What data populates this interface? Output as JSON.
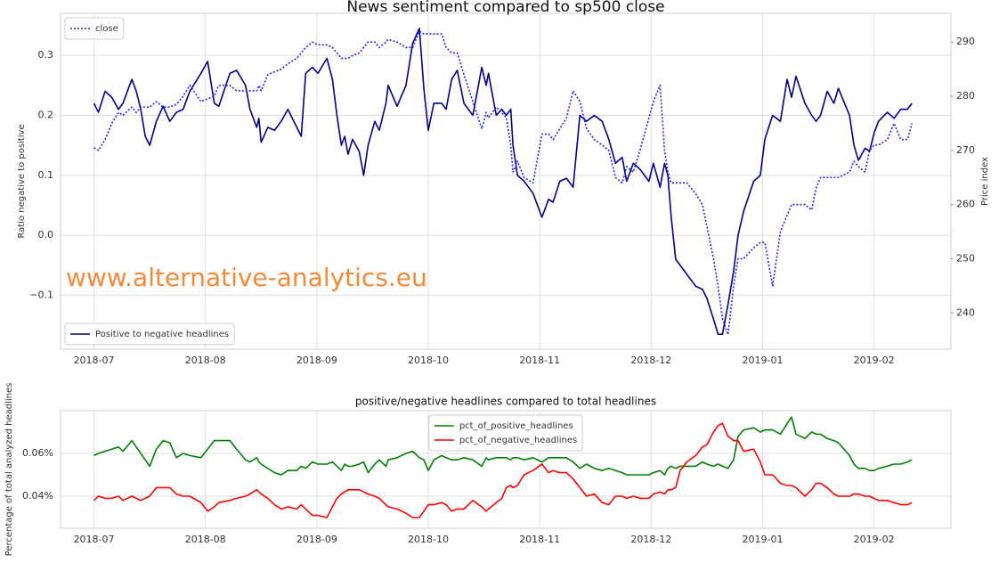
{
  "chart_data": [
    {
      "type": "line",
      "title": "News sentiment compared to sp500 close",
      "ylabel": "Ratio negative to positive",
      "y2label": "Price index",
      "annotation": "www.alternative-analytics.eu",
      "x": [
        0.0,
        0.04,
        0.1,
        0.16,
        0.22,
        0.26,
        0.34,
        0.38,
        0.42,
        0.46,
        0.5,
        0.56,
        0.62,
        0.68,
        0.74,
        0.8,
        0.86,
        0.96,
        1.02,
        1.08,
        1.12,
        1.22,
        1.28,
        1.36,
        1.4,
        1.46,
        1.48,
        1.5,
        1.56,
        1.62,
        1.68,
        1.74,
        1.82,
        1.86,
        1.9,
        1.96,
        2.01,
        2.09,
        2.14,
        2.18,
        2.22,
        2.25,
        2.28,
        2.32,
        2.38,
        2.42,
        2.46,
        2.52,
        2.56,
        2.62,
        2.64,
        2.72,
        2.8,
        2.86,
        2.92,
        2.96,
        3.0,
        3.05,
        3.12,
        3.16,
        3.21,
        3.26,
        3.32,
        3.4,
        3.48,
        3.52,
        3.54,
        3.61,
        3.66,
        3.7,
        3.74,
        3.76,
        3.8,
        3.86,
        3.94,
        4.02,
        4.08,
        4.12,
        4.18,
        4.24,
        4.3,
        4.36,
        4.42,
        4.49,
        4.56,
        4.62,
        4.68,
        4.74,
        4.78,
        4.84,
        4.9,
        4.98,
        5.02,
        5.08,
        5.12,
        5.15,
        5.18,
        5.22,
        5.26,
        5.32,
        5.4,
        5.46,
        5.5,
        5.56,
        5.6,
        5.64,
        5.69,
        5.74,
        5.78,
        5.83,
        5.92,
        5.98,
        6.02,
        6.09,
        6.16,
        6.22,
        6.26,
        6.3,
        6.38,
        6.44,
        6.48,
        6.52,
        6.58,
        6.64,
        6.68,
        6.78,
        6.82,
        6.86,
        6.92,
        6.96,
        7.0,
        7.04,
        7.12,
        7.18,
        7.24,
        7.3,
        7.34
      ],
      "series": [
        {
          "name": "Positive to negative headlines",
          "color": "#00008b",
          "linestyle": "solid",
          "legend": "lower left",
          "values": [
            0.22,
            0.205,
            0.24,
            0.23,
            0.21,
            0.22,
            0.26,
            0.24,
            0.21,
            0.165,
            0.15,
            0.19,
            0.215,
            0.19,
            0.205,
            0.21,
            0.24,
            0.27,
            0.29,
            0.22,
            0.215,
            0.27,
            0.275,
            0.25,
            0.21,
            0.18,
            0.195,
            0.155,
            0.18,
            0.175,
            0.19,
            0.21,
            0.18,
            0.165,
            0.27,
            0.28,
            0.27,
            0.295,
            0.26,
            0.2,
            0.15,
            0.165,
            0.135,
            0.16,
            0.14,
            0.1,
            0.15,
            0.19,
            0.175,
            0.22,
            0.25,
            0.215,
            0.25,
            0.32,
            0.345,
            0.245,
            0.175,
            0.22,
            0.22,
            0.21,
            0.26,
            0.275,
            0.22,
            0.2,
            0.28,
            0.25,
            0.27,
            0.2,
            0.21,
            0.2,
            0.21,
            0.15,
            0.1,
            0.09,
            0.07,
            0.03,
            0.06,
            0.055,
            0.09,
            0.095,
            0.08,
            0.2,
            0.19,
            0.2,
            0.19,
            0.16,
            0.12,
            0.13,
            0.09,
            0.12,
            0.11,
            0.09,
            0.12,
            0.08,
            0.12,
            0.1,
            0.03,
            -0.04,
            -0.05,
            -0.065,
            -0.085,
            -0.09,
            -0.105,
            -0.14,
            -0.165,
            -0.165,
            -0.115,
            -0.06,
            0.0,
            0.04,
            0.09,
            0.1,
            0.16,
            0.2,
            0.19,
            0.26,
            0.23,
            0.265,
            0.22,
            0.2,
            0.19,
            0.2,
            0.24,
            0.22,
            0.245,
            0.2,
            0.15,
            0.125,
            0.145,
            0.14,
            0.17,
            0.19,
            0.205,
            0.195,
            0.21,
            0.21,
            0.22
          ]
        },
        {
          "name": "close",
          "color": "#1f1fff",
          "linestyle": "dotted",
          "axis": "y2",
          "legend": "upper left",
          "values": [
            270.5,
            270,
            272,
            275,
            277,
            276.5,
            278,
            277,
            278,
            278,
            278,
            279,
            278,
            278,
            278.5,
            280,
            282,
            279,
            279.5,
            280,
            282,
            282,
            281,
            281,
            281,
            281,
            282,
            281,
            284,
            284.5,
            285,
            286,
            287,
            288,
            289,
            290,
            289.5,
            289.5,
            289,
            288,
            287,
            287,
            287,
            287.5,
            288,
            289,
            290,
            290,
            289,
            290,
            290.5,
            290,
            289,
            289,
            292,
            291.5,
            291.5,
            291.5,
            291.5,
            289,
            288,
            288,
            284,
            279,
            274,
            277,
            276,
            278,
            277,
            276,
            271,
            266,
            268,
            265,
            264,
            273,
            273,
            272,
            274,
            276,
            281,
            279,
            274,
            272,
            271,
            270,
            265,
            264,
            267,
            266,
            270,
            276,
            279,
            282,
            270,
            266,
            264,
            264,
            264,
            264,
            262,
            260,
            256,
            250,
            245,
            239,
            236,
            245,
            250,
            250,
            252,
            253,
            253,
            245,
            255,
            258,
            260,
            260,
            260,
            259,
            263,
            265,
            265,
            265,
            265,
            266,
            268,
            267,
            266,
            270,
            271,
            271,
            272,
            275,
            272,
            272,
            275
          ]
        }
      ],
      "xlim": [
        -0.3,
        7.69
      ],
      "xticks": [
        {
          "value": 0,
          "label": "2018-07"
        },
        {
          "value": 1,
          "label": "2018-08"
        },
        {
          "value": 2,
          "label": "2018-09"
        },
        {
          "value": 3,
          "label": "2018-10"
        },
        {
          "value": 4,
          "label": "2018-11"
        },
        {
          "value": 5,
          "label": "2018-12"
        },
        {
          "value": 6,
          "label": "2019-01"
        },
        {
          "value": 7,
          "label": "2019-02"
        }
      ],
      "ylim": [
        -0.19,
        0.37
      ],
      "yticks": [
        {
          "value": -0.1,
          "label": "−0.1"
        },
        {
          "value": 0,
          "label": "0.0"
        },
        0.1,
        0.2,
        0.3
      ],
      "y2lim": [
        233.3,
        295.3
      ],
      "y2ticks": [
        240,
        250,
        260,
        270,
        280,
        290
      ],
      "grid": true
    },
    {
      "type": "line",
      "title": "positive/negative headlines compared to total headlines",
      "ylabel": "Percentage of total analyzed headlines",
      "legend": "upper center",
      "x": [
        0.0,
        0.04,
        0.1,
        0.16,
        0.22,
        0.26,
        0.34,
        0.38,
        0.42,
        0.46,
        0.5,
        0.56,
        0.62,
        0.68,
        0.74,
        0.8,
        0.86,
        0.96,
        1.02,
        1.08,
        1.12,
        1.22,
        1.28,
        1.36,
        1.4,
        1.46,
        1.48,
        1.5,
        1.56,
        1.62,
        1.68,
        1.74,
        1.82,
        1.86,
        1.9,
        1.96,
        2.01,
        2.09,
        2.14,
        2.18,
        2.22,
        2.25,
        2.28,
        2.32,
        2.38,
        2.42,
        2.46,
        2.52,
        2.56,
        2.62,
        2.64,
        2.72,
        2.8,
        2.86,
        2.92,
        2.96,
        3.0,
        3.05,
        3.12,
        3.16,
        3.21,
        3.26,
        3.32,
        3.4,
        3.48,
        3.52,
        3.54,
        3.61,
        3.66,
        3.7,
        3.74,
        3.76,
        3.8,
        3.86,
        3.94,
        4.02,
        4.08,
        4.12,
        4.18,
        4.24,
        4.3,
        4.36,
        4.42,
        4.49,
        4.56,
        4.62,
        4.68,
        4.74,
        4.78,
        4.84,
        4.9,
        4.98,
        5.02,
        5.08,
        5.12,
        5.15,
        5.18,
        5.22,
        5.26,
        5.32,
        5.4,
        5.46,
        5.5,
        5.56,
        5.6,
        5.64,
        5.69,
        5.74,
        5.78,
        5.83,
        5.92,
        5.98,
        6.02,
        6.09,
        6.16,
        6.22,
        6.26,
        6.3,
        6.38,
        6.44,
        6.48,
        6.52,
        6.58,
        6.64,
        6.68,
        6.78,
        6.82,
        6.86,
        6.92,
        6.96,
        7.0,
        7.04,
        7.12,
        7.18,
        7.24,
        7.3,
        7.34
      ],
      "series": [
        {
          "name": "pct_of_positive_headlines",
          "color": "#008000",
          "values": [
            0.059,
            0.06,
            0.061,
            0.062,
            0.063,
            0.061,
            0.066,
            0.063,
            0.06,
            0.057,
            0.054,
            0.062,
            0.066,
            0.065,
            0.058,
            0.06,
            0.059,
            0.058,
            0.062,
            0.066,
            0.066,
            0.066,
            0.062,
            0.057,
            0.056,
            0.058,
            0.056,
            0.055,
            0.053,
            0.051,
            0.05,
            0.052,
            0.052,
            0.054,
            0.053,
            0.056,
            0.055,
            0.055,
            0.056,
            0.054,
            0.052,
            0.055,
            0.054,
            0.054,
            0.055,
            0.056,
            0.051,
            0.055,
            0.057,
            0.054,
            0.057,
            0.058,
            0.06,
            0.061,
            0.058,
            0.057,
            0.052,
            0.057,
            0.059,
            0.058,
            0.057,
            0.057,
            0.058,
            0.057,
            0.054,
            0.058,
            0.057,
            0.058,
            0.058,
            0.058,
            0.057,
            0.058,
            0.058,
            0.057,
            0.058,
            0.056,
            0.058,
            0.058,
            0.058,
            0.058,
            0.056,
            0.053,
            0.055,
            0.053,
            0.052,
            0.053,
            0.052,
            0.051,
            0.05,
            0.05,
            0.05,
            0.05,
            0.051,
            0.052,
            0.05,
            0.053,
            0.054,
            0.053,
            0.054,
            0.054,
            0.054,
            0.056,
            0.055,
            0.054,
            0.055,
            0.054,
            0.053,
            0.057,
            0.068,
            0.071,
            0.072,
            0.07,
            0.071,
            0.071,
            0.069,
            0.074,
            0.077,
            0.069,
            0.067,
            0.07,
            0.069,
            0.069,
            0.067,
            0.066,
            0.065,
            0.059,
            0.055,
            0.053,
            0.053,
            0.052,
            0.052,
            0.053,
            0.054,
            0.055,
            0.055,
            0.056,
            0.057
          ]
        },
        {
          "name": "pct_of_negative_headlines",
          "color": "#ff0000",
          "values": [
            0.038,
            0.04,
            0.039,
            0.039,
            0.04,
            0.038,
            0.04,
            0.039,
            0.038,
            0.039,
            0.04,
            0.044,
            0.044,
            0.044,
            0.041,
            0.04,
            0.04,
            0.037,
            0.033,
            0.035,
            0.037,
            0.038,
            0.039,
            0.04,
            0.041,
            0.043,
            0.042,
            0.041,
            0.039,
            0.036,
            0.034,
            0.035,
            0.034,
            0.036,
            0.034,
            0.031,
            0.031,
            0.03,
            0.035,
            0.039,
            0.041,
            0.042,
            0.043,
            0.043,
            0.043,
            0.042,
            0.041,
            0.04,
            0.039,
            0.036,
            0.035,
            0.034,
            0.032,
            0.03,
            0.03,
            0.033,
            0.036,
            0.036,
            0.037,
            0.036,
            0.033,
            0.034,
            0.034,
            0.038,
            0.035,
            0.033,
            0.034,
            0.037,
            0.039,
            0.044,
            0.045,
            0.044,
            0.045,
            0.05,
            0.052,
            0.055,
            0.051,
            0.052,
            0.051,
            0.051,
            0.048,
            0.044,
            0.04,
            0.041,
            0.037,
            0.036,
            0.04,
            0.04,
            0.039,
            0.04,
            0.039,
            0.039,
            0.041,
            0.042,
            0.041,
            0.043,
            0.043,
            0.044,
            0.052,
            0.056,
            0.059,
            0.063,
            0.064,
            0.07,
            0.073,
            0.074,
            0.068,
            0.066,
            0.066,
            0.061,
            0.062,
            0.056,
            0.05,
            0.05,
            0.046,
            0.045,
            0.045,
            0.044,
            0.04,
            0.043,
            0.046,
            0.046,
            0.044,
            0.041,
            0.04,
            0.04,
            0.041,
            0.041,
            0.04,
            0.04,
            0.039,
            0.038,
            0.038,
            0.037,
            0.036,
            0.036,
            0.037
          ]
        }
      ],
      "xlim": [
        -0.3,
        7.69
      ],
      "xticks": [
        {
          "value": 0,
          "label": "2018-07"
        },
        {
          "value": 1,
          "label": "2018-08"
        },
        {
          "value": 2,
          "label": "2018-09"
        },
        {
          "value": 3,
          "label": "2018-10"
        },
        {
          "value": 4,
          "label": "2018-11"
        },
        {
          "value": 5,
          "label": "2018-12"
        },
        {
          "value": 6,
          "label": "2019-01"
        },
        {
          "value": 7,
          "label": "2019-02"
        }
      ],
      "ylim": [
        0.025,
        0.08
      ],
      "yticks": [
        {
          "value": 0.04,
          "label": "0.04%"
        },
        {
          "value": 0.06,
          "label": "0.06%"
        }
      ],
      "grid": true
    }
  ]
}
